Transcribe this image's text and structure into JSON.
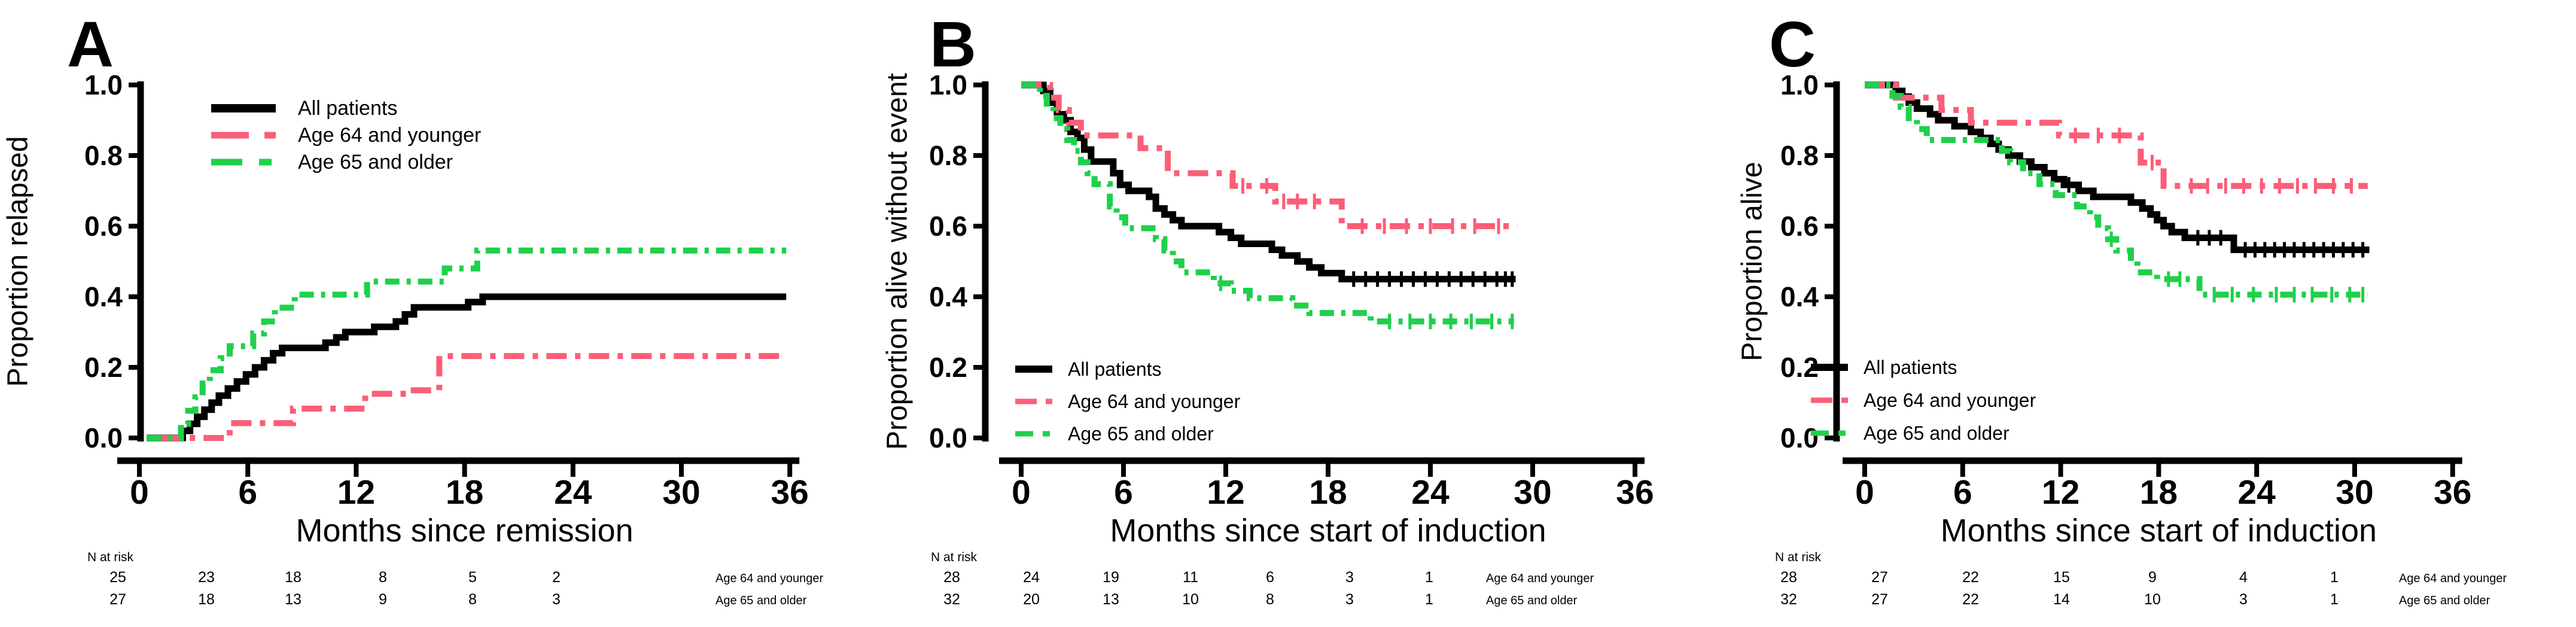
{
  "figure": {
    "background": "#ffffff",
    "colors": {
      "all_patients": "#000000",
      "age_64_and_younger": "#fb5e78",
      "age_65_and_older": "#1fd04a"
    }
  },
  "chart_data": [
    {
      "type": "line",
      "subtype": "kaplan-meier-step",
      "title": "A",
      "xlabel": "Months since remission",
      "ylabel": "Proportion relapsed",
      "xlim": [
        0,
        36
      ],
      "ylim": [
        0.0,
        1.0
      ],
      "xticks": [
        0,
        6,
        12,
        18,
        24,
        30,
        36
      ],
      "yticks": [
        "1.0",
        "0.8",
        "0.6",
        "0.4",
        "0.2",
        "0.0"
      ],
      "grid": false,
      "legend_position": "upper-left",
      "series": [
        {
          "name": "All patients",
          "color": "#000000",
          "line_style": "solid",
          "end": 35.8,
          "steps": [
            [
              0.4,
              0
            ],
            [
              2.4,
              0.02
            ],
            [
              2.8,
              0.04
            ],
            [
              3.2,
              0.06
            ],
            [
              3.6,
              0.08
            ],
            [
              4.0,
              0.1
            ],
            [
              4.4,
              0.12
            ],
            [
              4.9,
              0.14
            ],
            [
              5.4,
              0.16
            ],
            [
              5.9,
              0.18
            ],
            [
              6.4,
              0.2
            ],
            [
              6.9,
              0.22
            ],
            [
              7.4,
              0.24
            ],
            [
              7.9,
              0.255
            ],
            [
              10.3,
              0.27
            ],
            [
              10.9,
              0.285
            ],
            [
              11.4,
              0.3
            ],
            [
              13.0,
              0.315
            ],
            [
              14.2,
              0.33
            ],
            [
              14.7,
              0.35
            ],
            [
              15.2,
              0.37
            ],
            [
              18.2,
              0.385
            ],
            [
              19.0,
              0.4
            ]
          ],
          "censor_marks": []
        },
        {
          "name": "Age 64 and younger",
          "color": "#fb5e78",
          "line_style": "long-dash",
          "end": 35.8,
          "steps": [
            [
              1.2,
              0
            ],
            [
              5.0,
              0.042
            ],
            [
              8.5,
              0.083
            ],
            [
              12.5,
              0.125
            ],
            [
              14.8,
              0.135
            ],
            [
              16.6,
              0.232
            ]
          ],
          "censor_marks": []
        },
        {
          "name": "Age 65 and older",
          "color": "#1fd04a",
          "line_style": "dash-dot",
          "end": 35.8,
          "steps": [
            [
              0.4,
              0
            ],
            [
              2.3,
              0.04
            ],
            [
              2.7,
              0.077
            ],
            [
              3.1,
              0.115
            ],
            [
              3.5,
              0.154
            ],
            [
              3.9,
              0.192
            ],
            [
              4.5,
              0.226
            ],
            [
              5.0,
              0.26
            ],
            [
              6.3,
              0.296
            ],
            [
              6.9,
              0.33
            ],
            [
              7.5,
              0.369
            ],
            [
              8.6,
              0.406
            ],
            [
              12.6,
              0.443
            ],
            [
              16.9,
              0.48
            ],
            [
              18.7,
              0.531
            ]
          ],
          "censor_marks": []
        }
      ],
      "n_at_risk": {
        "header": "N at risk",
        "rows": [
          {
            "label": "Age 64 and younger",
            "values": [
              "25",
              "23",
              "18",
              "8",
              "5",
              "2"
            ]
          },
          {
            "label": "Age 65 and older",
            "values": [
              "27",
              "18",
              "13",
              "9",
              "8",
              "3"
            ]
          }
        ]
      }
    },
    {
      "type": "line",
      "subtype": "kaplan-meier-step",
      "title": "B",
      "xlabel": "Months since start of induction",
      "ylabel": "Proportion alive without event",
      "xlim": [
        0,
        36
      ],
      "ylim": [
        0.0,
        1.0
      ],
      "xticks": [
        0,
        6,
        12,
        18,
        24,
        30,
        36
      ],
      "yticks": [
        "1.0",
        "0.8",
        "0.6",
        "0.4",
        "0.2",
        "0.0"
      ],
      "grid": false,
      "legend_position": "lower-left",
      "series": [
        {
          "name": "All patients",
          "color": "#000000",
          "line_style": "solid",
          "end": 29.0,
          "steps": [
            [
              0,
              1.0
            ],
            [
              1.3,
              0.983
            ],
            [
              1.7,
              0.95
            ],
            [
              2.1,
              0.917
            ],
            [
              2.5,
              0.9
            ],
            [
              2.9,
              0.867
            ],
            [
              3.3,
              0.85
            ],
            [
              3.7,
              0.817
            ],
            [
              4.1,
              0.783
            ],
            [
              5.4,
              0.75
            ],
            [
              5.8,
              0.717
            ],
            [
              6.3,
              0.7
            ],
            [
              7.5,
              0.683
            ],
            [
              7.9,
              0.65
            ],
            [
              8.4,
              0.633
            ],
            [
              8.9,
              0.617
            ],
            [
              9.4,
              0.6
            ],
            [
              11.6,
              0.583
            ],
            [
              12.3,
              0.567
            ],
            [
              12.9,
              0.55
            ],
            [
              14.7,
              0.533
            ],
            [
              15.3,
              0.517
            ],
            [
              16.2,
              0.5
            ],
            [
              16.9,
              0.483
            ],
            [
              17.6,
              0.467
            ],
            [
              18.8,
              0.45
            ]
          ],
          "censor_marks": [
            19.5,
            20.2,
            20.9,
            21.6,
            22.3,
            23.0,
            23.7,
            24.4,
            25.1,
            25.8,
            26.5,
            27.2,
            27.9,
            28.4,
            28.8
          ]
        },
        {
          "name": "Age 64 and younger",
          "color": "#fb5e78",
          "line_style": "long-dash",
          "end": 29.1,
          "steps": [
            [
              0,
              1.0
            ],
            [
              1.7,
              0.964
            ],
            [
              2.2,
              0.929
            ],
            [
              2.8,
              0.893
            ],
            [
              3.5,
              0.857
            ],
            [
              7.0,
              0.821
            ],
            [
              8.6,
              0.75
            ],
            [
              12.4,
              0.714
            ],
            [
              14.9,
              0.67
            ],
            [
              18.8,
              0.6
            ]
          ],
          "censor_marks": [
            13.0,
            14.4,
            15.4,
            16.2,
            17.2,
            20.0,
            21.3,
            22.6,
            24.0,
            25.3,
            26.6,
            28.0
          ]
        },
        {
          "name": "Age 65 and older",
          "color": "#1fd04a",
          "line_style": "dash-dot",
          "end": 28.9,
          "steps": [
            [
              0,
              1.0
            ],
            [
              1.1,
              0.969
            ],
            [
              1.5,
              0.938
            ],
            [
              1.9,
              0.906
            ],
            [
              2.3,
              0.875
            ],
            [
              2.7,
              0.844
            ],
            [
              3.1,
              0.813
            ],
            [
              3.5,
              0.781
            ],
            [
              3.9,
              0.75
            ],
            [
              4.3,
              0.719
            ],
            [
              5.2,
              0.656
            ],
            [
              5.6,
              0.625
            ],
            [
              6.1,
              0.594
            ],
            [
              7.9,
              0.563
            ],
            [
              8.4,
              0.531
            ],
            [
              8.9,
              0.5
            ],
            [
              9.4,
              0.469
            ],
            [
              11.3,
              0.438
            ],
            [
              12.3,
              0.417
            ],
            [
              13.4,
              0.396
            ],
            [
              15.9,
              0.375
            ],
            [
              16.9,
              0.354
            ],
            [
              20.5,
              0.33
            ]
          ],
          "censor_marks": [
            11.7,
            21.6,
            22.8,
            24.0,
            25.2,
            26.4,
            27.6,
            28.8
          ]
        }
      ],
      "n_at_risk": {
        "header": "N at risk",
        "rows": [
          {
            "label": "Age 64 and younger",
            "values": [
              "28",
              "24",
              "19",
              "11",
              "6",
              "3",
              "1"
            ]
          },
          {
            "label": "Age 65 and older",
            "values": [
              "32",
              "20",
              "13",
              "10",
              "8",
              "3",
              "1"
            ]
          }
        ]
      }
    },
    {
      "type": "line",
      "subtype": "kaplan-meier-step",
      "title": "C",
      "xlabel": "Months since start of induction",
      "ylabel": "Proportion alive",
      "xlim": [
        0,
        36
      ],
      "ylim": [
        0.0,
        1.0
      ],
      "xticks": [
        0,
        6,
        12,
        18,
        24,
        30,
        36
      ],
      "yticks": [
        "1.0",
        "0.8",
        "0.6",
        "0.4",
        "0.2",
        "0.0"
      ],
      "grid": false,
      "legend_position": "lower-left",
      "series": [
        {
          "name": "All patients",
          "color": "#000000",
          "line_style": "solid",
          "end": 30.9,
          "steps": [
            [
              0,
              1.0
            ],
            [
              1.9,
              0.983
            ],
            [
              2.3,
              0.967
            ],
            [
              2.7,
              0.95
            ],
            [
              3.2,
              0.933
            ],
            [
              4.0,
              0.917
            ],
            [
              4.5,
              0.9
            ],
            [
              5.5,
              0.883
            ],
            [
              6.5,
              0.867
            ],
            [
              7.1,
              0.85
            ],
            [
              7.7,
              0.833
            ],
            [
              8.2,
              0.817
            ],
            [
              8.8,
              0.8
            ],
            [
              9.5,
              0.783
            ],
            [
              10.2,
              0.767
            ],
            [
              11.0,
              0.75
            ],
            [
              11.6,
              0.733
            ],
            [
              12.2,
              0.717
            ],
            [
              13.1,
              0.7
            ],
            [
              14.0,
              0.683
            ],
            [
              16.3,
              0.667
            ],
            [
              17.0,
              0.65
            ],
            [
              17.5,
              0.633
            ],
            [
              17.9,
              0.617
            ],
            [
              18.3,
              0.6
            ],
            [
              18.8,
              0.583
            ],
            [
              19.6,
              0.567
            ],
            [
              22.6,
              0.533
            ]
          ],
          "censor_marks": [
            12.5,
            20.4,
            21.1,
            21.8,
            23.3,
            23.9,
            24.5,
            25.1,
            25.7,
            26.3,
            26.9,
            27.5,
            28.1,
            28.7,
            29.3,
            29.9,
            30.5
          ]
        },
        {
          "name": "Age 64 and younger",
          "color": "#fb5e78",
          "line_style": "long-dash",
          "end": 30.8,
          "steps": [
            [
              0,
              1.0
            ],
            [
              1.9,
              0.964
            ],
            [
              4.7,
              0.929
            ],
            [
              6.5,
              0.893
            ],
            [
              11.9,
              0.857
            ],
            [
              16.9,
              0.78
            ],
            [
              18.3,
              0.714
            ]
          ],
          "censor_marks": [
            12.9,
            14.3,
            15.6,
            17.6,
            20.0,
            21.0,
            22.1,
            23.2,
            24.3,
            25.4,
            26.5,
            27.6,
            28.7,
            29.8
          ]
        },
        {
          "name": "Age 65 and older",
          "color": "#1fd04a",
          "line_style": "dash-dot",
          "end": 30.8,
          "steps": [
            [
              0,
              1.0
            ],
            [
              1.7,
              0.969
            ],
            [
              2.2,
              0.938
            ],
            [
              2.7,
              0.906
            ],
            [
              3.2,
              0.875
            ],
            [
              3.8,
              0.844
            ],
            [
              8.4,
              0.813
            ],
            [
              8.9,
              0.781
            ],
            [
              9.7,
              0.75
            ],
            [
              10.7,
              0.719
            ],
            [
              11.7,
              0.688
            ],
            [
              13.0,
              0.656
            ],
            [
              13.8,
              0.625
            ],
            [
              14.3,
              0.594
            ],
            [
              14.9,
              0.563
            ],
            [
              15.4,
              0.531
            ],
            [
              16.3,
              0.5
            ],
            [
              16.7,
              0.469
            ],
            [
              17.9,
              0.45
            ],
            [
              20.5,
              0.406
            ]
          ],
          "censor_marks": [
            15.1,
            18.6,
            19.3,
            21.4,
            22.5,
            23.8,
            25.2,
            26.3,
            27.4,
            28.6,
            29.7,
            30.5
          ]
        }
      ],
      "n_at_risk": {
        "header": "N at risk",
        "rows": [
          {
            "label": "Age 64 and younger",
            "values": [
              "28",
              "27",
              "22",
              "15",
              "9",
              "4",
              "1"
            ]
          },
          {
            "label": "Age 65 and older",
            "values": [
              "32",
              "27",
              "22",
              "14",
              "10",
              "3",
              "1"
            ]
          }
        ]
      }
    }
  ]
}
